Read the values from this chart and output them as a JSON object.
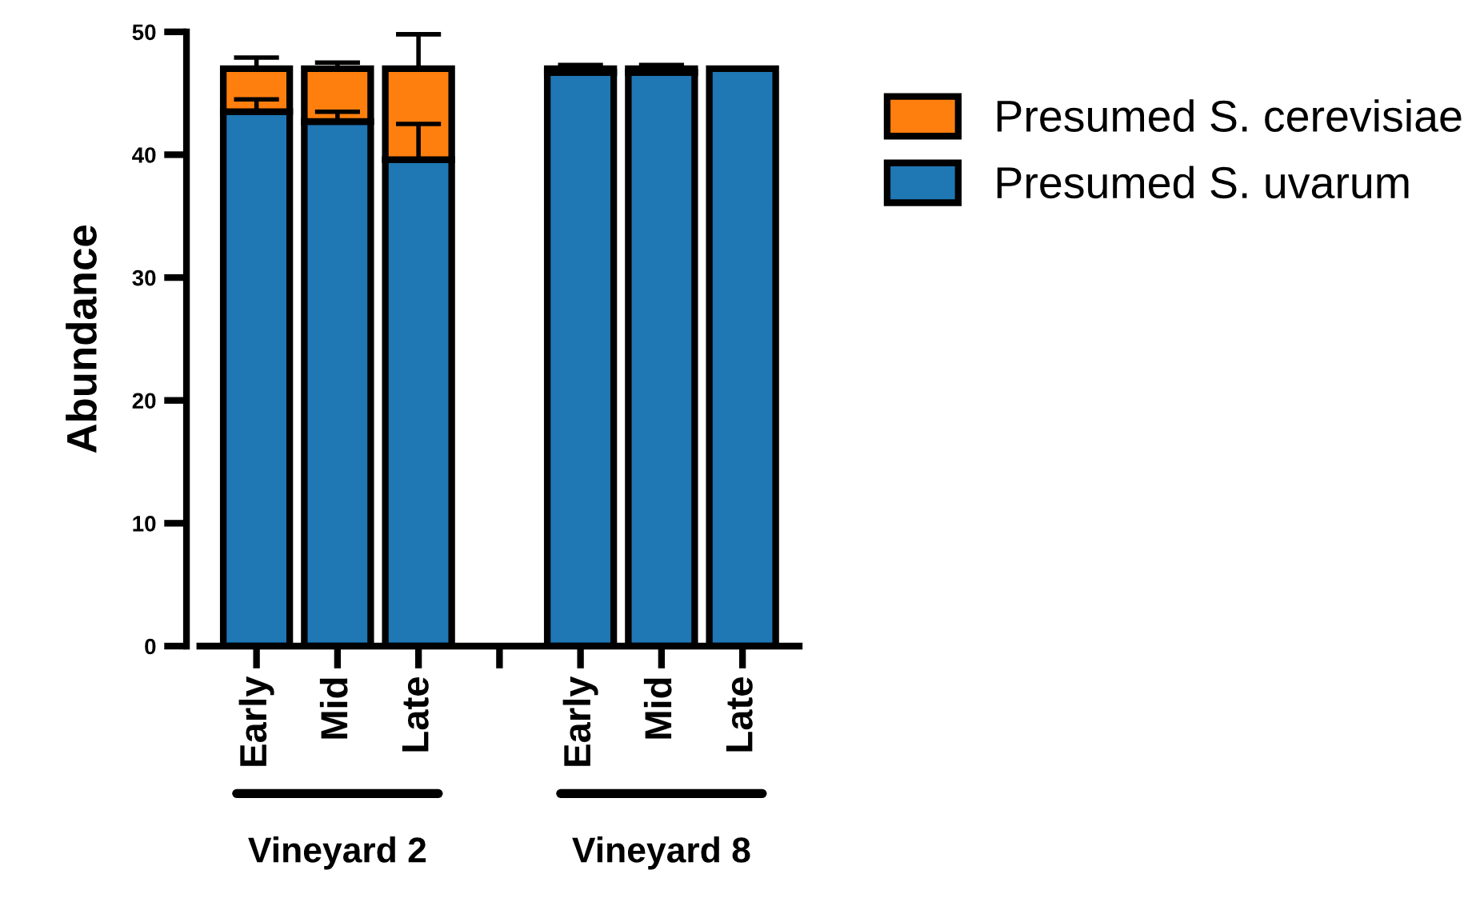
{
  "chart_data": {
    "type": "bar",
    "stacked": true,
    "categories": [
      "Early",
      "Mid",
      "Late",
      null,
      "Early",
      "Mid",
      "Late"
    ],
    "ylabel": "Abundance",
    "series": [
      {
        "name": "Presumed S. uvarum",
        "color": "#1f77b4",
        "values": [
          43.5,
          42.7,
          39.6,
          null,
          46.7,
          46.7,
          47
        ],
        "errors": [
          [
            43.5,
            44.5
          ],
          [
            42.7,
            43.5
          ],
          [
            39.6,
            42.5
          ],
          null,
          null,
          null,
          null
        ]
      },
      {
        "name": "Presumed S. cerevisiae",
        "color": "#ff7f0e",
        "values": [
          3.5,
          4.3,
          7.4,
          null,
          0.3,
          0.3,
          null
        ],
        "errors": [
          [
            47,
            47.9
          ],
          [
            47,
            47.5
          ],
          [
            47,
            49.8
          ],
          null,
          [
            47,
            47.3
          ],
          [
            47,
            47.3
          ],
          null
        ]
      }
    ],
    "ylim": [
      0,
      50
    ],
    "yticks": [
      0,
      10,
      20,
      30,
      40,
      50
    ],
    "annotations": [
      "Vineyard 2",
      "Vineyard 8"
    ],
    "legend": "right",
    "grid": false
  }
}
